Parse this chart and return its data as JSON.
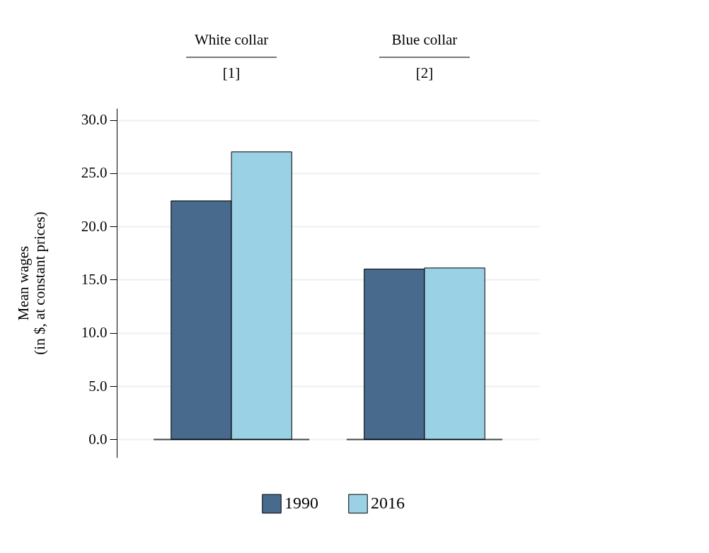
{
  "chart_data": {
    "type": "bar",
    "categories": [
      "White collar\n[1]",
      "Blue collar\n[2]"
    ],
    "ylabel": "Mean wages\n(in $, at constant prices)",
    "series": [
      {
        "name": "1990",
        "color": "#486a8c",
        "values": [
          22.4,
          16.0
        ]
      },
      {
        "name": "2016",
        "color": "#9bd1e4",
        "values": [
          27.0,
          16.1
        ]
      }
    ],
    "ylim": [
      -1.7,
      31.1
    ],
    "yticks": [
      {
        "value": 0,
        "label": "0.0"
      },
      {
        "value": 5,
        "label": "5.0"
      },
      {
        "value": 10,
        "label": "10.0"
      },
      {
        "value": 15,
        "label": "15.0"
      },
      {
        "value": 20,
        "label": "20.0"
      },
      {
        "value": 25,
        "label": "25.0"
      },
      {
        "value": 30,
        "label": "30.0"
      }
    ],
    "ref_lines": [
      {
        "axis": "y",
        "value": 0,
        "color": "#000000"
      }
    ],
    "grid": "y",
    "legend": "bottom"
  }
}
